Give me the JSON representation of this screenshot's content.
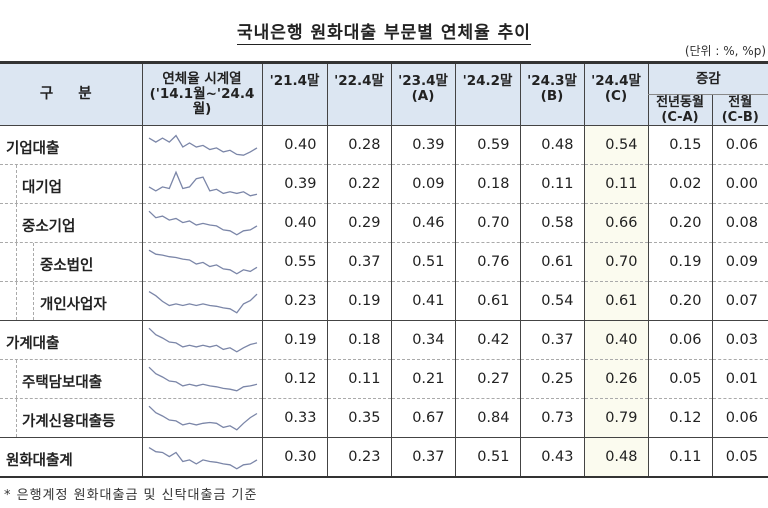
{
  "title": "국내은행 원화대출 부문별 연체율 추이",
  "unit": "(단위 : %, %p)",
  "headers": {
    "category": "구 분",
    "series": "연체율 시계열",
    "series_range": "('14.1월~'24.4월)",
    "cols": [
      "'21.4말",
      "'22.4말",
      "'23.4말",
      "'24.2말",
      "'24.3말",
      "'24.4말"
    ],
    "col_sub": [
      "",
      "",
      "(A)",
      "",
      "(B)",
      "(C)"
    ],
    "change": "증감",
    "yoy": "전년동월",
    "yoy_sub": "(C-A)",
    "mom": "전월",
    "mom_sub": "(C-B)"
  },
  "colors": {
    "header_bg": "#dce6f2",
    "highlight_bg": "#fbfbef",
    "sparkline": "#7b86a8"
  },
  "rows": [
    {
      "label": "기업대출",
      "level": 0,
      "values": [
        "0.40",
        "0.28",
        "0.39",
        "0.59",
        "0.48",
        "0.54",
        "0.15",
        "0.06"
      ],
      "spark": [
        7,
        6,
        7,
        6,
        8,
        4,
        5,
        4,
        4,
        3,
        3,
        2,
        2,
        1,
        0,
        2,
        3
      ]
    },
    {
      "label": "대기업",
      "level": 1,
      "values": [
        "0.39",
        "0.22",
        "0.09",
        "0.18",
        "0.11",
        "0.11",
        "0.02",
        "0.00"
      ],
      "spark": [
        3,
        2,
        3,
        3,
        9,
        3,
        3,
        7,
        7,
        2,
        2,
        1,
        1,
        1,
        1,
        0,
        0
      ]
    },
    {
      "label": "중소기업",
      "level": 1,
      "values": [
        "0.40",
        "0.29",
        "0.46",
        "0.70",
        "0.58",
        "0.66",
        "0.20",
        "0.08"
      ],
      "spark": [
        9,
        7,
        7,
        6,
        6,
        5,
        5,
        4,
        4,
        4,
        3,
        2,
        1,
        0,
        1,
        2,
        3
      ]
    },
    {
      "label": "중소법인",
      "level": 2,
      "values": [
        "0.55",
        "0.37",
        "0.51",
        "0.76",
        "0.61",
        "0.70",
        "0.19",
        "0.09"
      ],
      "spark": [
        9,
        8,
        7,
        7,
        6,
        6,
        5,
        4,
        4,
        3,
        3,
        2,
        1,
        0,
        1,
        1,
        2
      ]
    },
    {
      "label": "개인사업자",
      "level": 2,
      "values": [
        "0.23",
        "0.19",
        "0.41",
        "0.61",
        "0.54",
        "0.61",
        "0.20",
        "0.07"
      ],
      "spark": [
        8,
        7,
        4,
        3,
        3,
        3,
        3,
        3,
        3,
        3,
        2,
        2,
        1,
        0,
        3,
        5,
        7
      ]
    },
    {
      "label": "가계대출",
      "level": 0,
      "values": [
        "0.19",
        "0.18",
        "0.34",
        "0.42",
        "0.37",
        "0.40",
        "0.06",
        "0.03"
      ],
      "spark": [
        9,
        7,
        5,
        4,
        3,
        2,
        2,
        2,
        2,
        2,
        2,
        1,
        1,
        0,
        1,
        3,
        3
      ]
    },
    {
      "label": "주택담보대출",
      "level": 1,
      "values": [
        "0.12",
        "0.11",
        "0.21",
        "0.27",
        "0.25",
        "0.26",
        "0.05",
        "0.01"
      ],
      "spark": [
        9,
        7,
        5,
        4,
        3,
        2,
        2,
        2,
        2,
        2,
        1,
        1,
        0,
        0,
        1,
        2,
        2
      ]
    },
    {
      "label": "가계신용대출등",
      "level": 1,
      "values": [
        "0.33",
        "0.35",
        "0.67",
        "0.84",
        "0.73",
        "0.79",
        "0.12",
        "0.06"
      ],
      "spark": [
        9,
        7,
        5,
        4,
        3,
        2,
        2,
        2,
        2,
        3,
        2,
        1,
        1,
        0,
        2,
        5,
        6
      ]
    },
    {
      "label": "원화대출계",
      "level": 0,
      "values": [
        "0.30",
        "0.23",
        "0.37",
        "0.51",
        "0.43",
        "0.48",
        "0.11",
        "0.05"
      ],
      "spark": [
        8,
        7,
        6,
        5,
        6,
        3,
        3,
        2,
        3,
        3,
        2,
        2,
        1,
        0,
        1,
        2,
        3
      ]
    }
  ],
  "footnote": "* 은행계정 원화대출금 및 신탁대출금 기준"
}
